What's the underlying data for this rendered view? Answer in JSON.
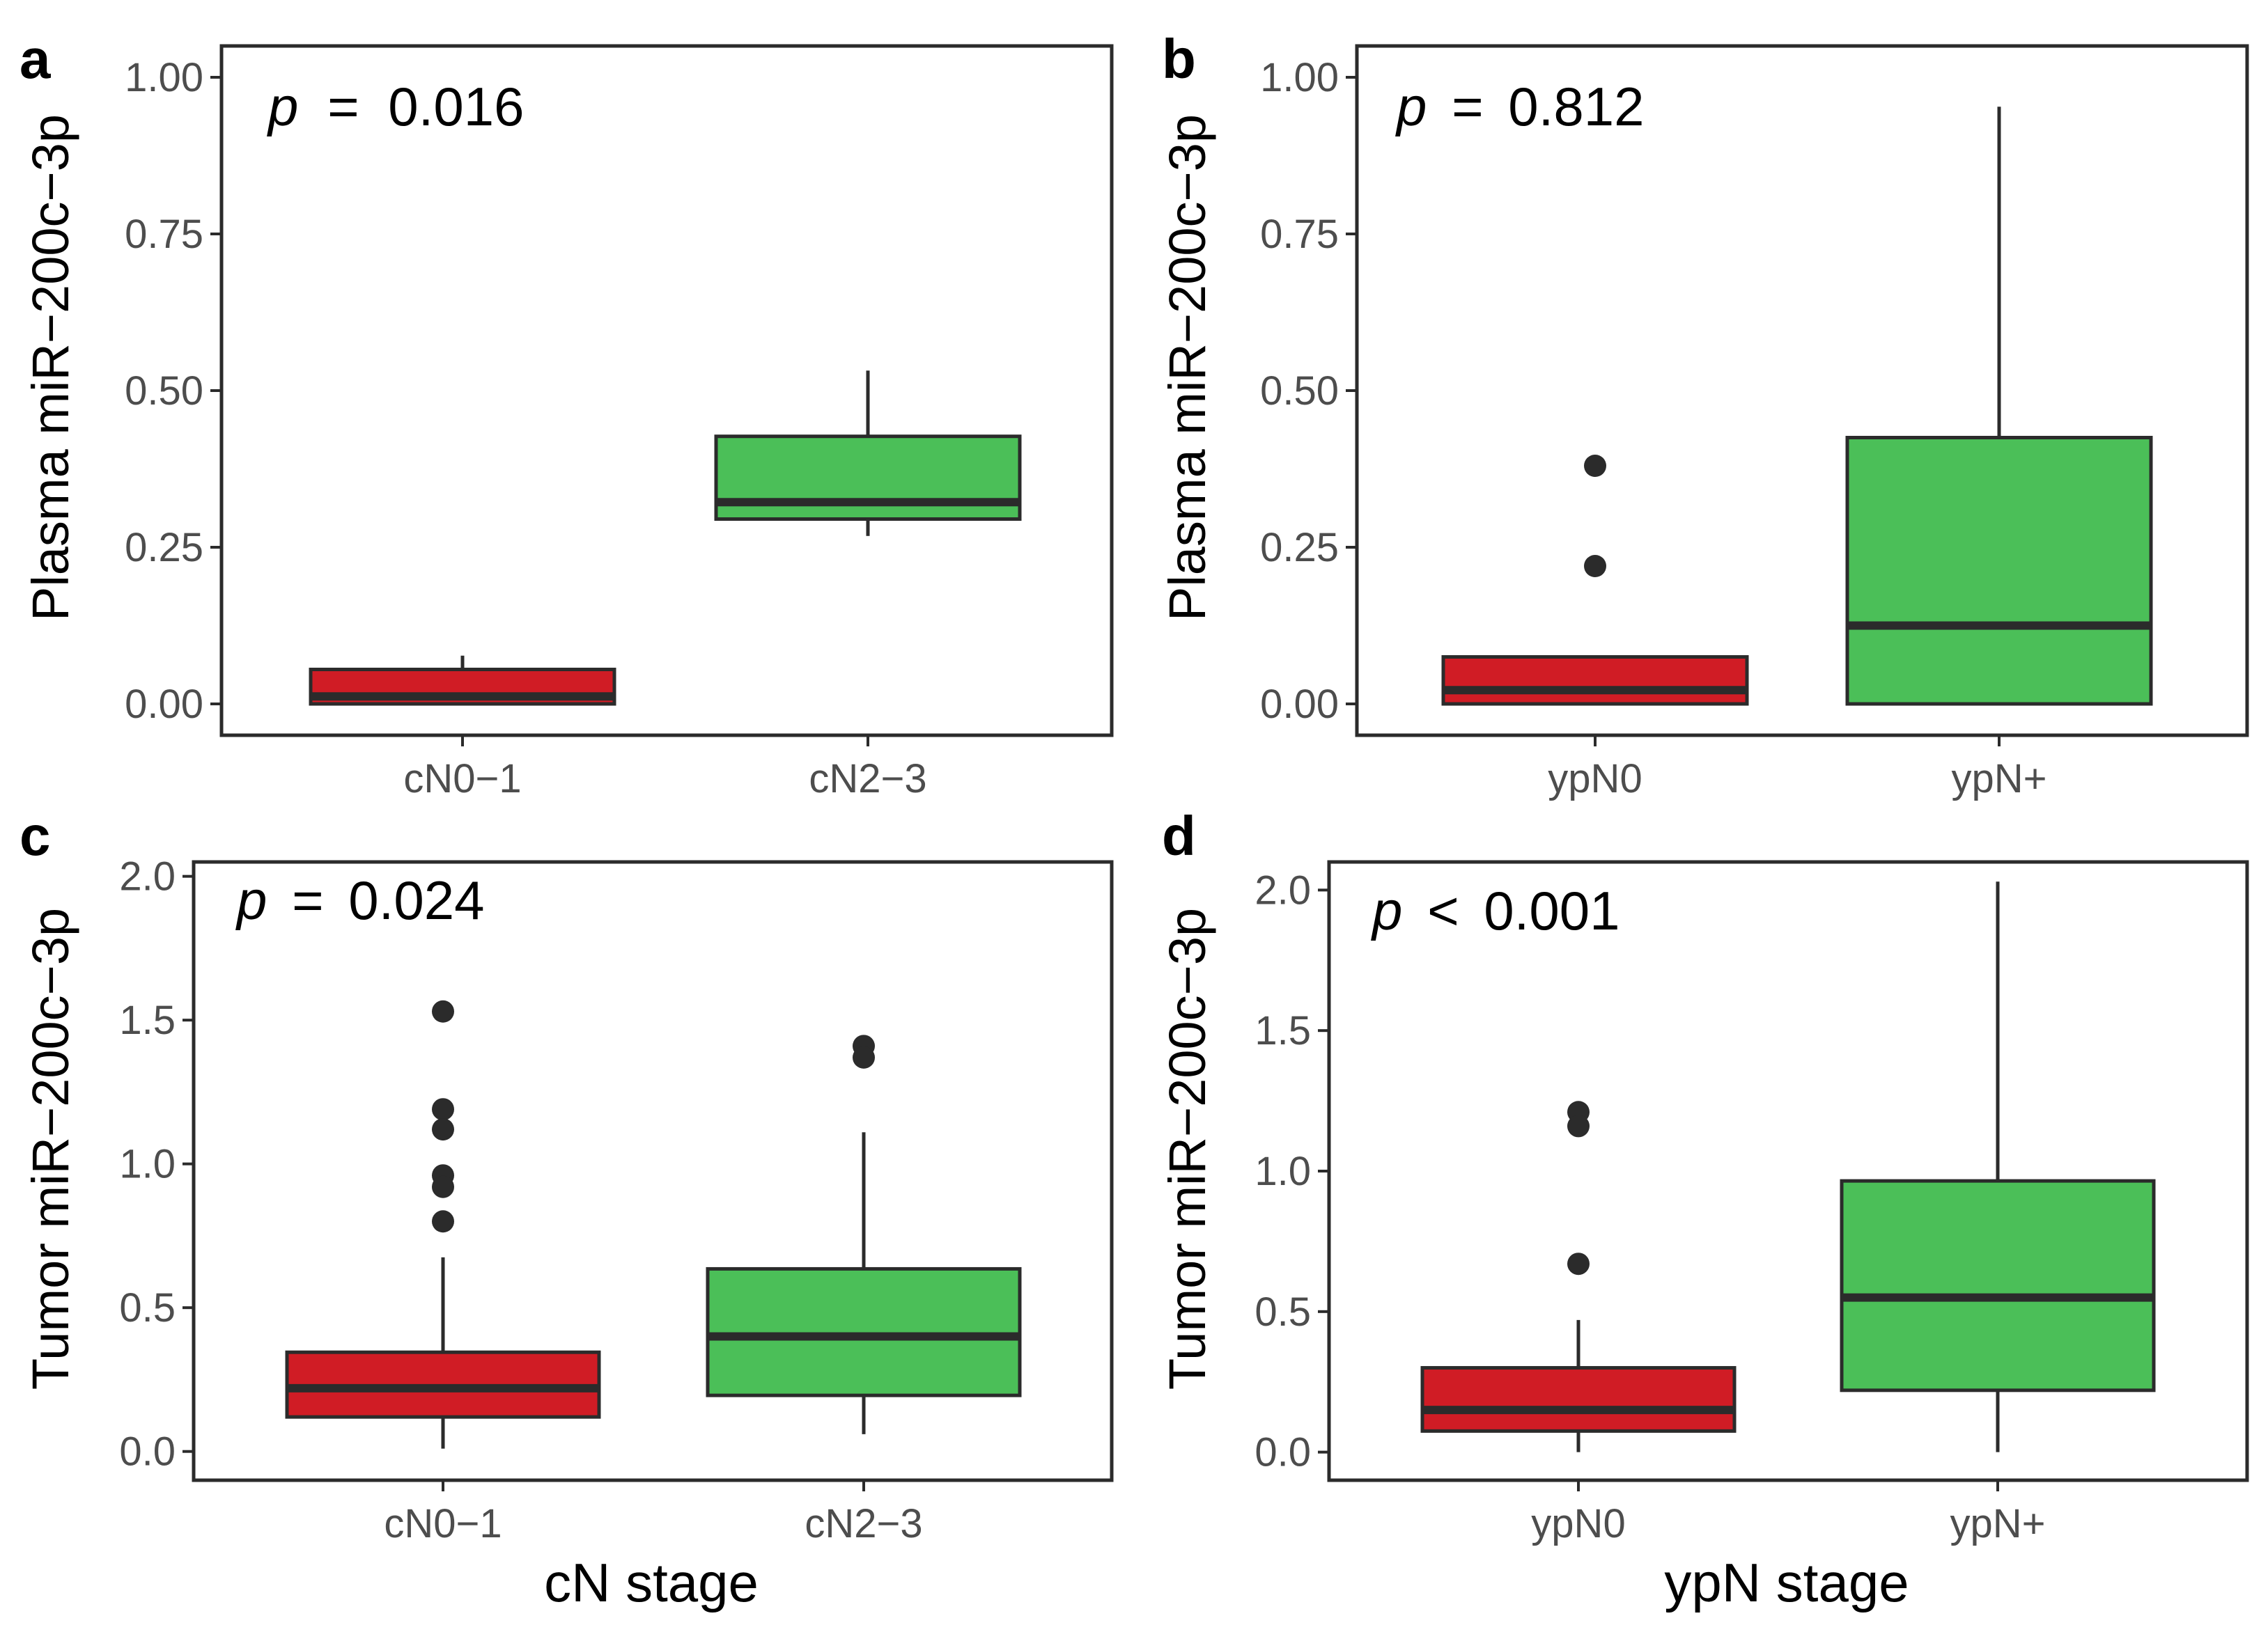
{
  "colors": {
    "low": "#d01c25",
    "high": "#4bbf58",
    "stroke": "#2b2b2b"
  },
  "chart_data": [
    {
      "type": "box",
      "panel": "a",
      "ylabel": "Plasma miR−200c−3p",
      "xlabel": "",
      "ylim": [
        -0.05,
        1.05
      ],
      "yticks": [
        "0.00",
        "0.25",
        "0.50",
        "0.75",
        "1.00"
      ],
      "pvalue": {
        "p": "p",
        "op": "=",
        "value": "0.016"
      },
      "categories": [
        "cN0−1",
        "cN2−3"
      ],
      "boxes": [
        {
          "category": "cN0−1",
          "color": "low",
          "whisker_low": 0.0,
          "q1": 0.0,
          "median": 0.012,
          "q3": 0.055,
          "whisker_high": 0.077,
          "outliers": []
        },
        {
          "category": "cN2−3",
          "color": "high",
          "whisker_low": 0.268,
          "q1": 0.295,
          "median": 0.322,
          "q3": 0.427,
          "whisker_high": 0.532,
          "outliers": []
        }
      ]
    },
    {
      "type": "box",
      "panel": "b",
      "ylabel": "Plasma miR−200c−3p",
      "xlabel": "",
      "ylim": [
        -0.05,
        1.05
      ],
      "yticks": [
        "0.00",
        "0.25",
        "0.50",
        "0.75",
        "1.00"
      ],
      "pvalue": {
        "p": "p",
        "op": "=",
        "value": "0.812"
      },
      "categories": [
        "ypN0",
        "ypN+"
      ],
      "boxes": [
        {
          "category": "ypN0",
          "color": "low",
          "whisker_low": 0.0,
          "q1": 0.0,
          "median": 0.022,
          "q3": 0.075,
          "whisker_high": 0.075,
          "outliers": [
            0.38,
            0.22
          ]
        },
        {
          "category": "ypN+",
          "color": "high",
          "whisker_low": 0.0,
          "q1": 0.0,
          "median": 0.125,
          "q3": 0.425,
          "whisker_high": 0.953,
          "outliers": []
        }
      ]
    },
    {
      "type": "box",
      "panel": "c",
      "ylabel": "Tumor miR−200c−3p",
      "xlabel": "cN stage",
      "ylim": [
        -0.1,
        2.05
      ],
      "yticks": [
        "0.0",
        "0.5",
        "1.0",
        "1.5",
        "2.0"
      ],
      "pvalue": {
        "p": "p",
        "op": "=",
        "value": "0.024"
      },
      "categories": [
        "cN0−1",
        "cN2−3"
      ],
      "boxes": [
        {
          "category": "cN0−1",
          "color": "low",
          "whisker_low": 0.01,
          "q1": 0.12,
          "median": 0.22,
          "q3": 0.345,
          "whisker_high": 0.675,
          "outliers": [
            1.53,
            1.19,
            1.12,
            0.96,
            0.92,
            0.8
          ]
        },
        {
          "category": "cN2−3",
          "color": "high",
          "whisker_low": 0.06,
          "q1": 0.195,
          "median": 0.4,
          "q3": 0.635,
          "whisker_high": 1.11,
          "outliers": [
            1.41,
            1.37
          ]
        }
      ]
    },
    {
      "type": "box",
      "panel": "d",
      "ylabel": "Tumor miR−200c−3p",
      "xlabel": "ypN stage",
      "ylim": [
        -0.1,
        2.1
      ],
      "yticks": [
        "0.0",
        "0.5",
        "1.0",
        "1.5",
        "2.0"
      ],
      "pvalue": {
        "p": "p",
        "op": "<",
        "value": "0.001"
      },
      "categories": [
        "ypN0",
        "ypN+"
      ],
      "boxes": [
        {
          "category": "ypN0",
          "color": "low",
          "whisker_low": 0.0,
          "q1": 0.075,
          "median": 0.15,
          "q3": 0.3,
          "whisker_high": 0.47,
          "outliers": [
            1.21,
            1.16,
            0.67
          ]
        },
        {
          "category": "ypN+",
          "color": "high",
          "whisker_low": 0.0,
          "q1": 0.22,
          "median": 0.55,
          "q3": 0.965,
          "whisker_high": 2.03,
          "outliers": []
        }
      ]
    }
  ]
}
